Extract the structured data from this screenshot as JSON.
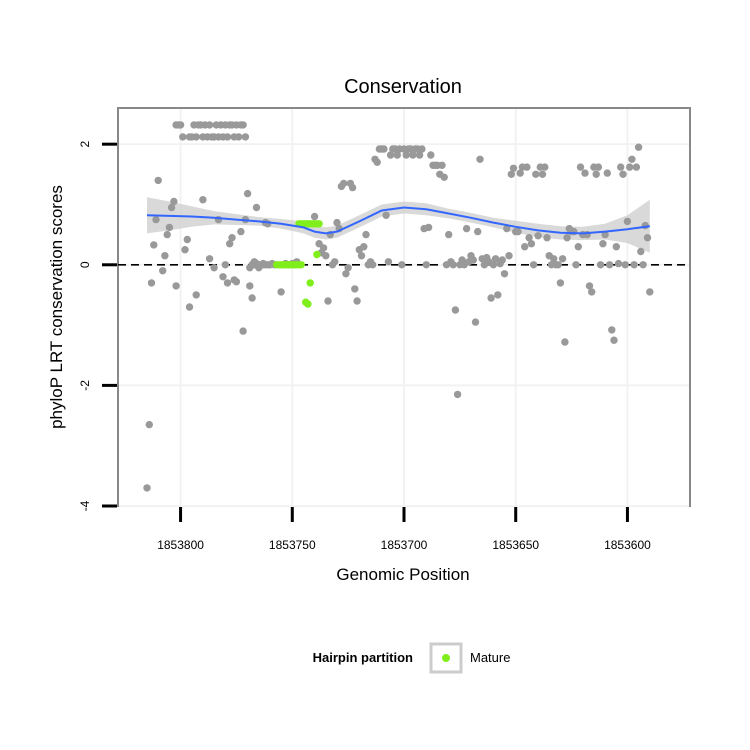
{
  "chart_data": {
    "type": "scatter",
    "title": "Conservation",
    "xlabel": "Genomic Position",
    "ylabel": "phyloP LRT conservation scores",
    "x_reversed": true,
    "xlim": [
      1853828,
      1853572
    ],
    "ylim": [
      -4.0,
      2.6
    ],
    "x_ticks": [
      1853800,
      1853750,
      1853700,
      1853650,
      1853600
    ],
    "y_ticks": [
      2,
      0,
      -2,
      -4
    ],
    "reference_line": {
      "y": 0,
      "style": "dashed"
    },
    "grid": true,
    "legend": {
      "title": "Hairpin partition",
      "position": "bottom",
      "entries": [
        {
          "label": "Mature",
          "color": "#80ee1a"
        }
      ]
    },
    "colors": {
      "other": "#999999",
      "mature": "#80ee1a",
      "smooth": "#3366ff",
      "ribbon": "#cccccc"
    },
    "series": [
      {
        "color_key": "other",
        "points": [
          [
            1853815,
            -3.7
          ],
          [
            1853814,
            -2.65
          ],
          [
            1853813,
            -0.3
          ],
          [
            1853812,
            0.33
          ],
          [
            1853811,
            0.75
          ],
          [
            1853810,
            1.4
          ],
          [
            1853808,
            -0.1
          ],
          [
            1853807,
            0.15
          ],
          [
            1853806,
            0.5
          ],
          [
            1853805,
            0.62
          ],
          [
            1853804,
            0.95
          ],
          [
            1853803,
            1.05
          ],
          [
            1853802,
            2.32
          ],
          [
            1853801,
            2.32
          ],
          [
            1853800,
            2.32
          ],
          [
            1853799,
            2.12
          ],
          [
            1853798,
            0.25
          ],
          [
            1853797,
            0.42
          ],
          [
            1853796,
            2.12
          ],
          [
            1853795,
            2.12
          ],
          [
            1853794,
            2.32
          ],
          [
            1853793,
            2.12
          ],
          [
            1853792,
            2.32
          ],
          [
            1853791,
            2.32
          ],
          [
            1853790,
            2.12
          ],
          [
            1853789,
            2.32
          ],
          [
            1853788,
            2.12
          ],
          [
            1853787,
            2.32
          ],
          [
            1853786,
            2.12
          ],
          [
            1853785,
            2.12
          ],
          [
            1853784,
            2.32
          ],
          [
            1853783,
            2.12
          ],
          [
            1853782,
            2.32
          ],
          [
            1853781,
            2.12
          ],
          [
            1853780,
            2.32
          ],
          [
            1853779,
            2.12
          ],
          [
            1853778,
            2.32
          ],
          [
            1853777,
            2.32
          ],
          [
            1853776,
            2.12
          ],
          [
            1853775,
            2.32
          ],
          [
            1853774,
            2.12
          ],
          [
            1853773,
            2.32
          ],
          [
            1853772,
            2.32
          ],
          [
            1853771,
            2.12
          ],
          [
            1853802,
            -0.35
          ],
          [
            1853796,
            -0.7
          ],
          [
            1853793,
            -0.5
          ],
          [
            1853790,
            1.08
          ],
          [
            1853787,
            0.1
          ],
          [
            1853785,
            -0.05
          ],
          [
            1853783,
            0.75
          ],
          [
            1853781,
            -0.2
          ],
          [
            1853780,
            0.0
          ],
          [
            1853779,
            -0.3
          ],
          [
            1853778,
            0.35
          ],
          [
            1853777,
            0.45
          ],
          [
            1853776,
            -0.25
          ],
          [
            1853775,
            -0.28
          ],
          [
            1853773,
            0.55
          ],
          [
            1853771,
            0.75
          ],
          [
            1853769,
            -0.05
          ],
          [
            1853768,
            0.0
          ],
          [
            1853767,
            0.0
          ],
          [
            1853766,
            0.02
          ],
          [
            1853765,
            -0.05
          ],
          [
            1853764,
            0.0
          ],
          [
            1853763,
            0.0
          ],
          [
            1853762,
            0.0
          ],
          [
            1853761,
            0.0
          ],
          [
            1853760,
            0.0
          ],
          [
            1853759,
            0.02
          ],
          [
            1853758,
            0.0
          ],
          [
            1853772,
            -1.1
          ],
          [
            1853770,
            1.18
          ],
          [
            1853769,
            -0.35
          ],
          [
            1853768,
            -0.55
          ],
          [
            1853767,
            0.05
          ],
          [
            1853766,
            0.95
          ],
          [
            1853765,
            0.0
          ],
          [
            1853763,
            0.02
          ],
          [
            1853762,
            0.7
          ],
          [
            1853761,
            0.68
          ],
          [
            1853760,
            0.0
          ],
          [
            1853755,
            -0.45
          ],
          [
            1853754,
            0.0
          ],
          [
            1853753,
            0.02
          ],
          [
            1853752,
            0.0
          ],
          [
            1853751,
            0.0
          ],
          [
            1853750,
            0.02
          ],
          [
            1853749,
            0.0
          ],
          [
            1853748,
            0.05
          ],
          [
            1853740,
            0.8
          ],
          [
            1853738,
            0.35
          ],
          [
            1853737,
            0.2
          ],
          [
            1853736,
            0.28
          ],
          [
            1853735,
            0.15
          ],
          [
            1853734,
            -0.6
          ],
          [
            1853733,
            0.5
          ],
          [
            1853732,
            0.0
          ],
          [
            1853731,
            0.05
          ],
          [
            1853730,
            0.7
          ],
          [
            1853729,
            0.6
          ],
          [
            1853728,
            1.3
          ],
          [
            1853727,
            1.35
          ],
          [
            1853726,
            -0.15
          ],
          [
            1853725,
            -0.05
          ],
          [
            1853724,
            1.35
          ],
          [
            1853723,
            1.28
          ],
          [
            1853722,
            -0.4
          ],
          [
            1853721,
            -0.6
          ],
          [
            1853720,
            0.25
          ],
          [
            1853719,
            0.15
          ],
          [
            1853718,
            0.3
          ],
          [
            1853717,
            0.5
          ],
          [
            1853716,
            0.0
          ],
          [
            1853715,
            0.05
          ],
          [
            1853714,
            0.0
          ],
          [
            1853713,
            1.75
          ],
          [
            1853712,
            1.7
          ],
          [
            1853711,
            1.92
          ],
          [
            1853710,
            1.92
          ],
          [
            1853709,
            1.92
          ],
          [
            1853708,
            0.82
          ],
          [
            1853707,
            0.05
          ],
          [
            1853706,
            1.82
          ],
          [
            1853705,
            1.92
          ],
          [
            1853704,
            1.92
          ],
          [
            1853703,
            1.82
          ],
          [
            1853702,
            1.92
          ],
          [
            1853701,
            0.0
          ],
          [
            1853700,
            1.92
          ],
          [
            1853699,
            1.82
          ],
          [
            1853698,
            1.92
          ],
          [
            1853697,
            1.92
          ],
          [
            1853696,
            1.82
          ],
          [
            1853695,
            1.92
          ],
          [
            1853694,
            1.92
          ],
          [
            1853693,
            1.82
          ],
          [
            1853692,
            1.92
          ],
          [
            1853691,
            0.6
          ],
          [
            1853690,
            0.0
          ],
          [
            1853689,
            0.62
          ],
          [
            1853688,
            1.82
          ],
          [
            1853687,
            1.65
          ],
          [
            1853686,
            1.65
          ],
          [
            1853685,
            1.65
          ],
          [
            1853684,
            1.5
          ],
          [
            1853683,
            1.65
          ],
          [
            1853682,
            1.45
          ],
          [
            1853681,
            0.0
          ],
          [
            1853680,
            0.5
          ],
          [
            1853679,
            0.05
          ],
          [
            1853678,
            0.0
          ],
          [
            1853677,
            -0.75
          ],
          [
            1853676,
            -2.15
          ],
          [
            1853675,
            0.0
          ],
          [
            1853674,
            0.08
          ],
          [
            1853673,
            0.0
          ],
          [
            1853672,
            0.6
          ],
          [
            1853671,
            0.05
          ],
          [
            1853670,
            0.15
          ],
          [
            1853669,
            0.08
          ],
          [
            1853668,
            -0.95
          ],
          [
            1853667,
            0.55
          ],
          [
            1853666,
            1.75
          ],
          [
            1853665,
            0.1
          ],
          [
            1853664,
            0.0
          ],
          [
            1853663,
            0.12
          ],
          [
            1853662,
            0.05
          ],
          [
            1853661,
            -0.55
          ],
          [
            1853660,
            0.0
          ],
          [
            1853659,
            0.1
          ],
          [
            1853658,
            -0.5
          ],
          [
            1853657,
            0.02
          ],
          [
            1853656,
            0.08
          ],
          [
            1853655,
            -0.15
          ],
          [
            1853654,
            0.6
          ],
          [
            1853653,
            0.15
          ],
          [
            1853652,
            1.5
          ],
          [
            1853651,
            1.6
          ],
          [
            1853650,
            0.55
          ],
          [
            1853649,
            0.55
          ],
          [
            1853648,
            1.52
          ],
          [
            1853647,
            1.62
          ],
          [
            1853646,
            0.3
          ],
          [
            1853645,
            1.62
          ],
          [
            1853644,
            0.45
          ],
          [
            1853643,
            0.35
          ],
          [
            1853642,
            0.0
          ],
          [
            1853641,
            1.5
          ],
          [
            1853640,
            0.48
          ],
          [
            1853639,
            1.62
          ],
          [
            1853638,
            1.5
          ],
          [
            1853637,
            1.62
          ],
          [
            1853636,
            0.45
          ],
          [
            1853635,
            0.15
          ],
          [
            1853634,
            0.0
          ],
          [
            1853633,
            0.1
          ],
          [
            1853632,
            0.0
          ],
          [
            1853631,
            0.0
          ],
          [
            1853630,
            -0.3
          ],
          [
            1853629,
            0.1
          ],
          [
            1853628,
            -1.28
          ],
          [
            1853627,
            0.45
          ],
          [
            1853626,
            0.6
          ],
          [
            1853625,
            0.55
          ],
          [
            1853624,
            0.55
          ],
          [
            1853623,
            0.0
          ],
          [
            1853622,
            0.3
          ],
          [
            1853621,
            1.62
          ],
          [
            1853620,
            0.5
          ],
          [
            1853619,
            1.52
          ],
          [
            1853618,
            0.5
          ],
          [
            1853617,
            -0.35
          ],
          [
            1853616,
            -0.45
          ],
          [
            1853615,
            1.62
          ],
          [
            1853614,
            1.5
          ],
          [
            1853613,
            1.62
          ],
          [
            1853612,
            0.0
          ],
          [
            1853611,
            0.35
          ],
          [
            1853610,
            0.5
          ],
          [
            1853609,
            1.52
          ],
          [
            1853608,
            0.0
          ],
          [
            1853607,
            -1.08
          ],
          [
            1853606,
            -1.25
          ],
          [
            1853605,
            0.3
          ],
          [
            1853604,
            0.02
          ],
          [
            1853603,
            1.62
          ],
          [
            1853602,
            1.5
          ],
          [
            1853601,
            0.0
          ],
          [
            1853600,
            0.72
          ],
          [
            1853599,
            1.62
          ],
          [
            1853598,
            1.75
          ],
          [
            1853597,
            0.0
          ],
          [
            1853596,
            1.62
          ],
          [
            1853595,
            1.95
          ],
          [
            1853594,
            0.22
          ],
          [
            1853593,
            0.0
          ],
          [
            1853592,
            0.65
          ],
          [
            1853591,
            0.45
          ],
          [
            1853590,
            -0.45
          ]
        ]
      },
      {
        "name": "Mature",
        "color_key": "mature",
        "points": [
          [
            1853757,
            0.0
          ],
          [
            1853756,
            0.0
          ],
          [
            1853755,
            0.0
          ],
          [
            1853754,
            0.0
          ],
          [
            1853753,
            0.0
          ],
          [
            1853752,
            0.0
          ],
          [
            1853751,
            0.0
          ],
          [
            1853750,
            0.0
          ],
          [
            1853749,
            0.0
          ],
          [
            1853748,
            0.0
          ],
          [
            1853747,
            0.0
          ],
          [
            1853746,
            0.0
          ],
          [
            1853747,
            0.68
          ],
          [
            1853746,
            0.68
          ],
          [
            1853745,
            0.68
          ],
          [
            1853744,
            0.68
          ],
          [
            1853743,
            0.68
          ],
          [
            1853742,
            0.68
          ],
          [
            1853741,
            0.68
          ],
          [
            1853740,
            0.68
          ],
          [
            1853739,
            0.68
          ],
          [
            1853738,
            0.68
          ],
          [
            1853744,
            -0.62
          ],
          [
            1853743,
            -0.65
          ],
          [
            1853742,
            -0.3
          ],
          [
            1853739,
            0.17
          ]
        ]
      }
    ],
    "smooth": {
      "x": [
        1853815,
        1853805,
        1853795,
        1853785,
        1853775,
        1853765,
        1853755,
        1853745,
        1853740,
        1853735,
        1853730,
        1853720,
        1853710,
        1853700,
        1853690,
        1853680,
        1853670,
        1853660,
        1853650,
        1853640,
        1853630,
        1853620,
        1853610,
        1853600,
        1853590
      ],
      "y": [
        0.82,
        0.81,
        0.8,
        0.78,
        0.75,
        0.72,
        0.68,
        0.62,
        0.55,
        0.52,
        0.55,
        0.72,
        0.9,
        0.95,
        0.92,
        0.85,
        0.78,
        0.7,
        0.63,
        0.57,
        0.53,
        0.52,
        0.55,
        0.59,
        0.64
      ],
      "lower": [
        0.52,
        0.57,
        0.63,
        0.67,
        0.66,
        0.65,
        0.6,
        0.52,
        0.45,
        0.42,
        0.45,
        0.62,
        0.8,
        0.85,
        0.82,
        0.77,
        0.7,
        0.62,
        0.53,
        0.46,
        0.42,
        0.41,
        0.42,
        0.36,
        0.2
      ],
      "upper": [
        1.12,
        1.05,
        0.97,
        0.89,
        0.84,
        0.79,
        0.76,
        0.72,
        0.65,
        0.62,
        0.65,
        0.82,
        1.0,
        1.05,
        1.02,
        0.93,
        0.86,
        0.78,
        0.73,
        0.68,
        0.64,
        0.63,
        0.68,
        0.82,
        1.08
      ]
    }
  }
}
